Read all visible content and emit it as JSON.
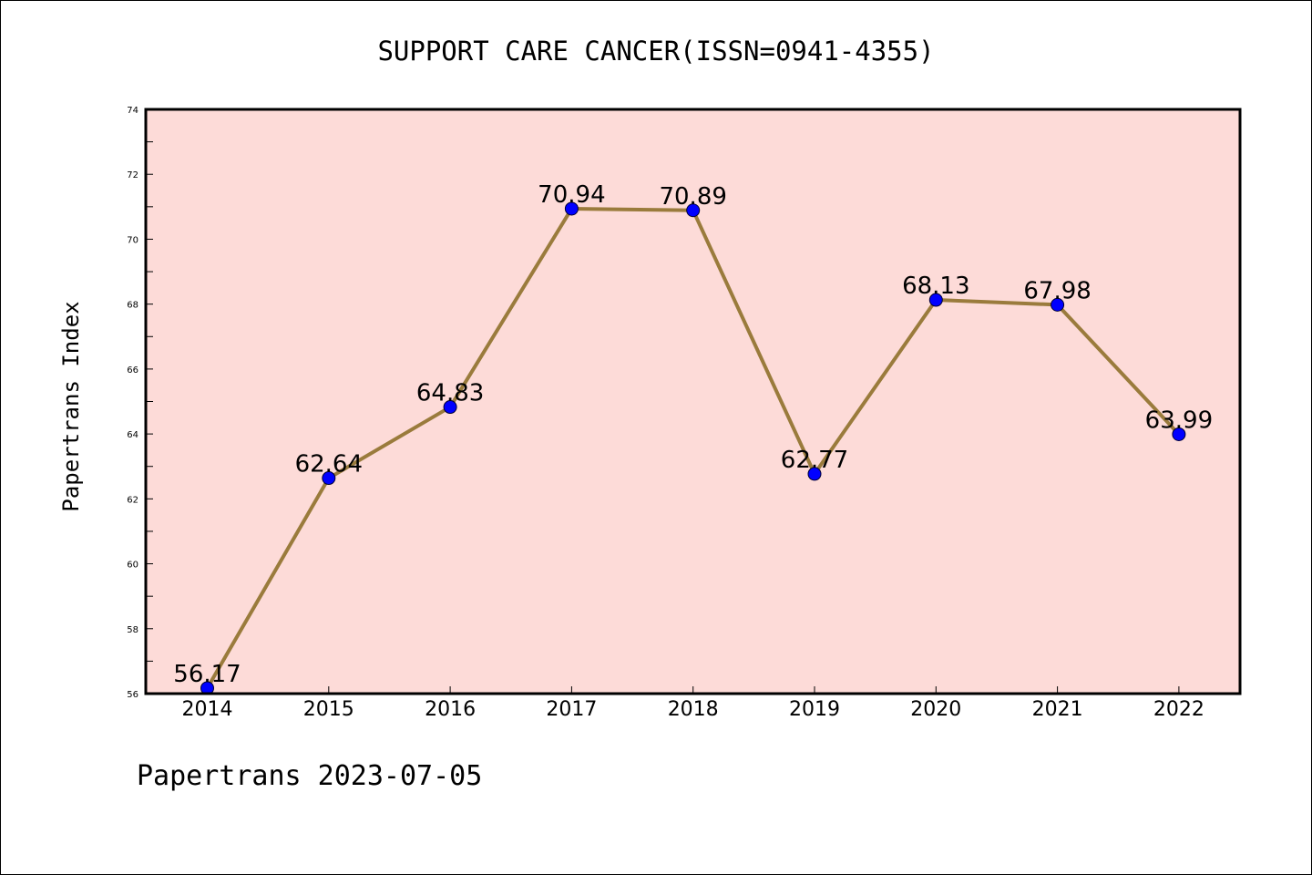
{
  "chart_data": {
    "type": "line",
    "title": "SUPPORT CARE CANCER(ISSN=0941-4355)",
    "xlabel": "",
    "ylabel": "Papertrans Index",
    "categories": [
      "2014",
      "2015",
      "2016",
      "2017",
      "2018",
      "2019",
      "2020",
      "2021",
      "2022"
    ],
    "series": [
      {
        "values": [
          56.17,
          62.64,
          64.83,
          70.94,
          70.89,
          62.77,
          68.13,
          67.98,
          63.99
        ],
        "data_labels": [
          "56.17",
          "62.64",
          "64.83",
          "70.94",
          "70.89",
          "62.77",
          "68.13",
          "67.98",
          "63.99"
        ]
      }
    ],
    "ylim": [
      56,
      74
    ],
    "yticks": [
      "56",
      "58",
      "60",
      "62",
      "64",
      "66",
      "68",
      "70",
      "72",
      "74"
    ],
    "grid": false,
    "legend": "none",
    "colors": {
      "plot_background": "#fddbd8",
      "line": "#9a7b3c",
      "marker": "#0000ff",
      "axis": "#000000"
    }
  },
  "footer": {
    "note": "Papertrans 2023-07-05"
  }
}
